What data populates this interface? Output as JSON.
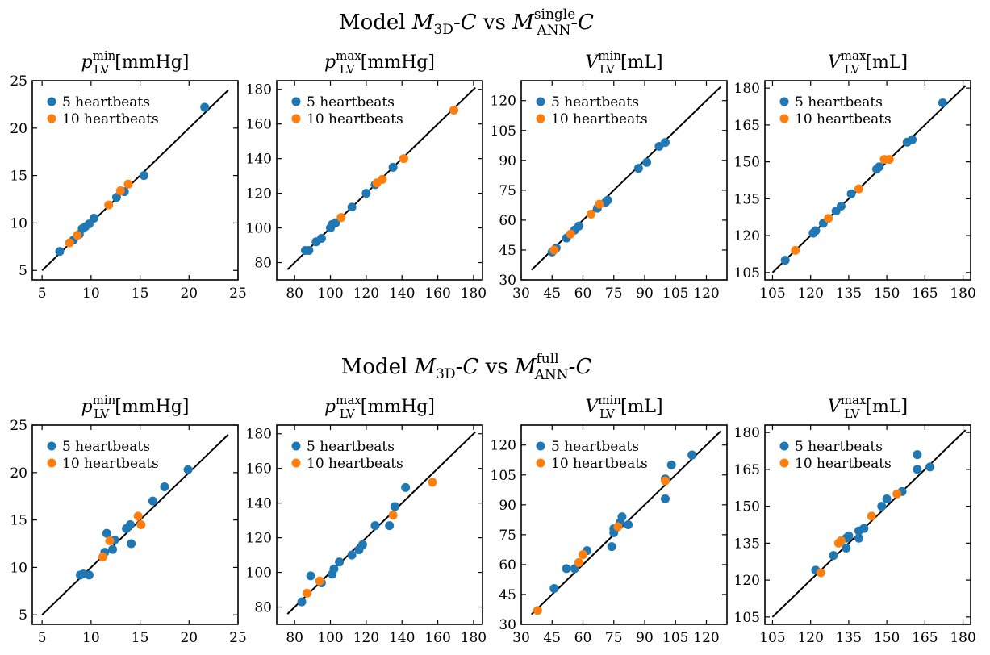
{
  "row_titles": [
    {
      "prefix": "Model ",
      "lhs_script": "M",
      "lhs_sub": "3D",
      "vs": " vs ",
      "rhs_script": "M",
      "rhs_sub": "ANN",
      "rhs_sup": "single",
      "dash_c": "-C"
    },
    {
      "prefix": "Model ",
      "lhs_script": "M",
      "lhs_sub": "3D",
      "vs": " vs ",
      "rhs_script": "M",
      "rhs_sub": "ANN",
      "rhs_sup": "full",
      "dash_c": "-C"
    }
  ],
  "legend_labels": [
    "5 heartbeats",
    "10 heartbeats"
  ],
  "colors": {
    "series_5": "#1f77b4",
    "series_10": "#ff7f0e",
    "identity": "#000000"
  },
  "chart_data": [
    {
      "type": "scatter",
      "row": 0,
      "col": 0,
      "title_sym": "p",
      "title_sup": "min",
      "title_sub": "LV",
      "title_unit": "[mmHg]",
      "xlim": [
        4,
        25
      ],
      "ylim": [
        4,
        25
      ],
      "ticks": [
        5,
        10,
        15,
        20,
        25
      ],
      "ytick_labels": [
        "5",
        "10",
        "15",
        "20",
        "25"
      ],
      "xtick_labels": [
        "5",
        "10",
        "15",
        "20",
        "25"
      ],
      "identity": [
        5,
        24
      ],
      "series": [
        {
          "name": "5 heartbeats",
          "points": [
            [
              6.8,
              7.0
            ],
            [
              8.2,
              8.2
            ],
            [
              8.8,
              8.8
            ],
            [
              9.1,
              9.4
            ],
            [
              9.4,
              9.6
            ],
            [
              9.8,
              9.9
            ],
            [
              10.3,
              10.5
            ],
            [
              12.6,
              12.7
            ],
            [
              13.4,
              13.3
            ],
            [
              15.4,
              15.0
            ],
            [
              21.6,
              22.2
            ]
          ]
        },
        {
          "name": "10 heartbeats",
          "points": [
            [
              7.8,
              7.9
            ],
            [
              8.6,
              8.7
            ],
            [
              11.8,
              11.9
            ],
            [
              13.0,
              13.4
            ],
            [
              13.8,
              14.1
            ]
          ]
        }
      ]
    },
    {
      "type": "scatter",
      "row": 0,
      "col": 1,
      "title_sym": "p",
      "title_sup": "max",
      "title_sub": "LV",
      "title_unit": "[mmHg]",
      "xlim": [
        70,
        185
      ],
      "ylim": [
        70,
        185
      ],
      "ticks": [
        80,
        100,
        120,
        140,
        160,
        180
      ],
      "ytick_labels": [
        "80",
        "100",
        "120",
        "140",
        "160",
        "180"
      ],
      "xtick_labels": [
        "80",
        "100",
        "120",
        "140",
        "160",
        "180"
      ],
      "identity": [
        76,
        181
      ],
      "series": [
        {
          "name": "5 heartbeats",
          "points": [
            [
              86,
              87
            ],
            [
              88,
              87
            ],
            [
              92,
              92
            ],
            [
              95,
              94
            ],
            [
              100,
              100
            ],
            [
              101,
              102
            ],
            [
              103,
              103
            ],
            [
              112,
              112
            ],
            [
              120,
              120
            ],
            [
              125,
              125
            ],
            [
              135,
              135
            ]
          ]
        },
        {
          "name": "10 heartbeats",
          "points": [
            [
              106,
              106
            ],
            [
              126,
              126
            ],
            [
              129,
              128
            ],
            [
              141,
              140
            ],
            [
              169,
              168
            ]
          ]
        }
      ]
    },
    {
      "type": "scatter",
      "row": 0,
      "col": 2,
      "title_sym": "V",
      "title_sup": "min",
      "title_sub": "LV",
      "title_unit": "[mL]",
      "xlim": [
        30,
        130
      ],
      "ylim": [
        30,
        130
      ],
      "ticks": [
        30,
        45,
        60,
        75,
        90,
        105,
        120
      ],
      "ytick_labels": [
        "30",
        "45",
        "60",
        "75",
        "90",
        "105",
        "120"
      ],
      "xtick_labels": [
        "30",
        "45",
        "60",
        "75",
        "90",
        "105",
        "120"
      ],
      "identity": [
        35,
        127
      ],
      "series": [
        {
          "name": "5 heartbeats",
          "points": [
            [
              45,
              44
            ],
            [
              47,
              46
            ],
            [
              52,
              51
            ],
            [
              56,
              55
            ],
            [
              58,
              57
            ],
            [
              67,
              66
            ],
            [
              71,
              69
            ],
            [
              72,
              70
            ],
            [
              87,
              86
            ],
            [
              91,
              89
            ],
            [
              97,
              97
            ],
            [
              100,
              99
            ]
          ]
        },
        {
          "name": "10 heartbeats",
          "points": [
            [
              46,
              45
            ],
            [
              54,
              53
            ],
            [
              64,
              63
            ],
            [
              68,
              68
            ]
          ]
        }
      ]
    },
    {
      "type": "scatter",
      "row": 0,
      "col": 3,
      "title_sym": "V",
      "title_sup": "max",
      "title_sub": "LV",
      "title_unit": "[mL]",
      "xlim": [
        102,
        183
      ],
      "ylim": [
        102,
        183
      ],
      "ticks": [
        105,
        120,
        135,
        150,
        165,
        180
      ],
      "ytick_labels": [
        "105",
        "120",
        "135",
        "150",
        "165",
        "180"
      ],
      "xtick_labels": [
        "105",
        "120",
        "135",
        "150",
        "165",
        "180"
      ],
      "identity": [
        105,
        181
      ],
      "series": [
        {
          "name": "5 heartbeats",
          "points": [
            [
              110,
              110
            ],
            [
              121,
              121
            ],
            [
              122,
              122
            ],
            [
              125,
              125
            ],
            [
              130,
              130
            ],
            [
              132,
              132
            ],
            [
              136,
              137
            ],
            [
              146,
              147
            ],
            [
              147,
              148
            ],
            [
              158,
              158
            ],
            [
              160,
              159
            ],
            [
              172,
              174
            ]
          ]
        },
        {
          "name": "10 heartbeats",
          "points": [
            [
              114,
              114
            ],
            [
              127,
              127
            ],
            [
              139,
              139
            ],
            [
              149,
              151
            ],
            [
              151,
              151
            ]
          ]
        }
      ]
    },
    {
      "type": "scatter",
      "row": 1,
      "col": 0,
      "title_sym": "p",
      "title_sup": "min",
      "title_sub": "LV",
      "title_unit": "[mmHg]",
      "xlim": [
        4,
        25
      ],
      "ylim": [
        4,
        25
      ],
      "ticks": [
        5,
        10,
        15,
        20,
        25
      ],
      "ytick_labels": [
        "5",
        "10",
        "15",
        "20",
        "25"
      ],
      "xtick_labels": [
        "5",
        "10",
        "15",
        "20",
        "25"
      ],
      "identity": [
        5,
        24
      ],
      "series": [
        {
          "name": "5 heartbeats",
          "points": [
            [
              8.9,
              9.2
            ],
            [
              9.2,
              9.3
            ],
            [
              9.8,
              9.2
            ],
            [
              11.4,
              11.6
            ],
            [
              11.6,
              13.6
            ],
            [
              12.2,
              11.9
            ],
            [
              12.4,
              12.9
            ],
            [
              13.6,
              14.1
            ],
            [
              14.0,
              14.5
            ],
            [
              14.1,
              12.5
            ],
            [
              16.3,
              17.0
            ],
            [
              17.5,
              18.5
            ],
            [
              19.9,
              20.3
            ]
          ]
        },
        {
          "name": "10 heartbeats",
          "points": [
            [
              11.2,
              11.1
            ],
            [
              11.9,
              12.8
            ],
            [
              14.8,
              15.4
            ],
            [
              15.1,
              14.5
            ]
          ]
        }
      ]
    },
    {
      "type": "scatter",
      "row": 1,
      "col": 1,
      "title_sym": "p",
      "title_sup": "max",
      "title_sub": "LV",
      "title_unit": "[mmHg]",
      "xlim": [
        70,
        185
      ],
      "ylim": [
        70,
        185
      ],
      "ticks": [
        80,
        100,
        120,
        140,
        160,
        180
      ],
      "ytick_labels": [
        "80",
        "100",
        "120",
        "140",
        "160",
        "180"
      ],
      "xtick_labels": [
        "80",
        "100",
        "120",
        "140",
        "160",
        "180"
      ],
      "identity": [
        76,
        181
      ],
      "series": [
        {
          "name": "5 heartbeats",
          "points": [
            [
              84,
              83
            ],
            [
              89,
              98
            ],
            [
              95,
              94
            ],
            [
              101,
              99
            ],
            [
              102,
              102
            ],
            [
              105,
              106
            ],
            [
              112,
              110
            ],
            [
              116,
              113
            ],
            [
              118,
              116
            ],
            [
              125,
              127
            ],
            [
              133,
              127
            ],
            [
              136,
              138
            ],
            [
              142,
              149
            ]
          ]
        },
        {
          "name": "10 heartbeats",
          "points": [
            [
              87,
              88
            ],
            [
              94,
              95
            ],
            [
              135,
              133
            ],
            [
              157,
              152
            ]
          ]
        }
      ]
    },
    {
      "type": "scatter",
      "row": 1,
      "col": 2,
      "title_sym": "V",
      "title_sup": "min",
      "title_sub": "LV",
      "title_unit": "[mL]",
      "xlim": [
        30,
        130
      ],
      "ylim": [
        30,
        130
      ],
      "ticks": [
        30,
        45,
        60,
        75,
        90,
        105,
        120
      ],
      "ytick_labels": [
        "30",
        "45",
        "60",
        "75",
        "90",
        "105",
        "120"
      ],
      "xtick_labels": [
        "30",
        "45",
        "60",
        "75",
        "90",
        "105",
        "120"
      ],
      "identity": [
        35,
        127
      ],
      "series": [
        {
          "name": "5 heartbeats",
          "points": [
            [
              46,
              48
            ],
            [
              52,
              58
            ],
            [
              56,
              58
            ],
            [
              62,
              67
            ],
            [
              74,
              69
            ],
            [
              75,
              76
            ],
            [
              75,
              78
            ],
            [
              78,
              81
            ],
            [
              79,
              84
            ],
            [
              82,
              80
            ],
            [
              100,
              93
            ],
            [
              100,
              103
            ],
            [
              103,
              110
            ],
            [
              113,
              115
            ]
          ]
        },
        {
          "name": "10 heartbeats",
          "points": [
            [
              38,
              37
            ],
            [
              58,
              61
            ],
            [
              60,
              65
            ],
            [
              77,
              79
            ],
            [
              100,
              102
            ]
          ]
        }
      ]
    },
    {
      "type": "scatter",
      "row": 1,
      "col": 3,
      "title_sym": "V",
      "title_sup": "max",
      "title_sub": "LV",
      "title_unit": "[mL]",
      "xlim": [
        102,
        183
      ],
      "ylim": [
        102,
        183
      ],
      "ticks": [
        105,
        120,
        135,
        150,
        165,
        180
      ],
      "ytick_labels": [
        "105",
        "120",
        "135",
        "150",
        "165",
        "180"
      ],
      "xtick_labels": [
        "105",
        "120",
        "135",
        "150",
        "165",
        "180"
      ],
      "identity": [
        105,
        181
      ],
      "series": [
        {
          "name": "5 heartbeats",
          "points": [
            [
              122,
              124
            ],
            [
              129,
              130
            ],
            [
              134,
              133
            ],
            [
              134,
              137
            ],
            [
              135,
              138
            ],
            [
              139,
              137
            ],
            [
              139,
              140
            ],
            [
              141,
              141
            ],
            [
              148,
              150
            ],
            [
              150,
              153
            ],
            [
              156,
              156
            ],
            [
              162,
              165
            ],
            [
              162,
              171
            ],
            [
              167,
              166
            ]
          ]
        },
        {
          "name": "10 heartbeats",
          "points": [
            [
              124,
              123
            ],
            [
              131,
              135
            ],
            [
              132,
              136
            ],
            [
              144,
              146
            ],
            [
              154,
              155
            ]
          ]
        }
      ]
    }
  ]
}
